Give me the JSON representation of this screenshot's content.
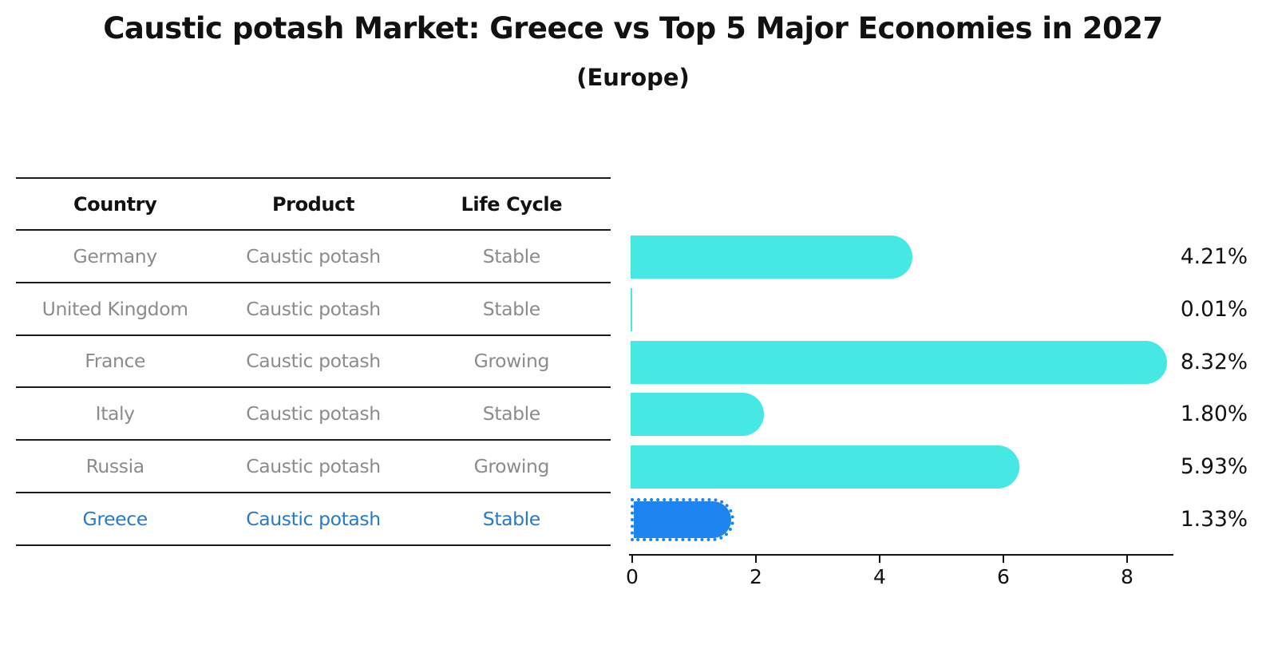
{
  "title": "Caustic potash Market: Greece vs Top 5 Major Economies in 2027",
  "subtitle": "(Europe)",
  "table": {
    "headers": [
      "Country",
      "Product",
      "Life Cycle"
    ],
    "rows": [
      {
        "country": "Germany",
        "product": "Caustic potash",
        "life_cycle": "Stable",
        "highlighted": false
      },
      {
        "country": "United Kingdom",
        "product": "Caustic potash",
        "life_cycle": "Stable",
        "highlighted": false
      },
      {
        "country": "France",
        "product": "Caustic potash",
        "life_cycle": "Growing",
        "highlighted": false
      },
      {
        "country": "Italy",
        "product": "Caustic potash",
        "life_cycle": "Stable",
        "highlighted": false
      },
      {
        "country": "Russia",
        "product": "Caustic potash",
        "life_cycle": "Growing",
        "highlighted": false
      },
      {
        "country": "Greece",
        "product": "Caustic potash",
        "life_cycle": "Stable",
        "highlighted": true
      }
    ]
  },
  "chart_data": {
    "type": "bar",
    "orientation": "horizontal",
    "title": "Caustic potash Market: Greece vs Top 5 Major Economies in 2027",
    "subtitle": "(Europe)",
    "categories": [
      "Germany",
      "United Kingdom",
      "France",
      "Italy",
      "Russia",
      "Greece"
    ],
    "values": [
      4.21,
      0.01,
      8.32,
      1.8,
      5.93,
      1.33
    ],
    "value_labels": [
      "4.21%",
      "0.01%",
      "8.32%",
      "1.80%",
      "5.93%",
      "1.33%"
    ],
    "unit": "%",
    "x_ticks": [
      0,
      2,
      4,
      6,
      8
    ],
    "x_tick_labels": [
      "0",
      "2",
      "4",
      "6",
      "8"
    ],
    "xlim": [
      0,
      8.75
    ],
    "grid": false,
    "legend": "none",
    "highlight_index": 5,
    "bar_color": "#45e8e2",
    "highlight_color": "#1e84f0",
    "highlight_text_color": "#2879c9",
    "text_color": "#8c8c8c"
  }
}
